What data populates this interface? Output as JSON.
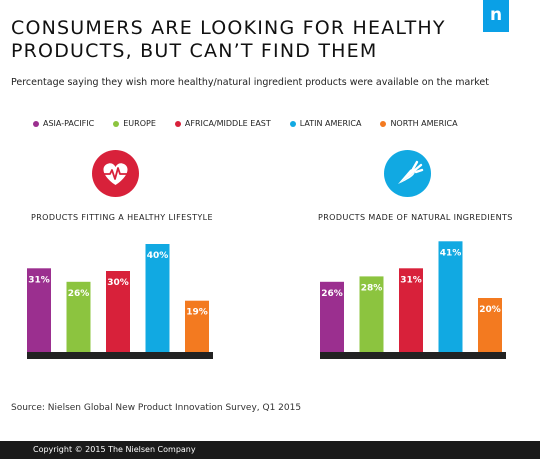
{
  "title_lines": [
    "CONSUMERS ARE LOOKING FOR HEALTHY",
    "PRODUCTS, BUT CAN’T FIND THEM"
  ],
  "subtitle": "Percentage saying they wish more healthy/natural ingredient products were available on the market",
  "logo_letter": "n",
  "source": "Source: Nielsen Global New Product Innovation Survey, Q1 2015",
  "copyright": "Copyright © 2015 The Nielsen Company",
  "icons": {
    "left": "heart-pulse-icon",
    "right": "carrot-icon",
    "left_color": "#d8213a",
    "right_color": "#11a9e2"
  },
  "chart_data": [
    {
      "type": "bar",
      "title": "PRODUCTS FITTING A HEALTHY LIFESTYLE",
      "categories": [
        "ASIA-PACIFIC",
        "EUROPE",
        "AFRICA/MIDDLE EAST",
        "LATIN AMERICA",
        "NORTH AMERICA"
      ],
      "values": [
        31,
        26,
        30,
        40,
        19
      ],
      "labels": [
        "31%",
        "26%",
        "30%",
        "40%",
        "19%"
      ],
      "colors": [
        "#9b2f8f",
        "#8cc43f",
        "#d8213a",
        "#11a9e2",
        "#f37a20"
      ],
      "xlabel": "",
      "ylabel": "",
      "ylim": [
        0,
        42
      ]
    },
    {
      "type": "bar",
      "title": "PRODUCTS MADE OF NATURAL INGREDIENTS",
      "categories": [
        "ASIA-PACIFIC",
        "EUROPE",
        "AFRICA/MIDDLE EAST",
        "LATIN AMERICA",
        "NORTH AMERICA"
      ],
      "values": [
        26,
        28,
        31,
        41,
        20
      ],
      "labels": [
        "26%",
        "28%",
        "31%",
        "41%",
        "20%"
      ],
      "colors": [
        "#9b2f8f",
        "#8cc43f",
        "#d8213a",
        "#11a9e2",
        "#f37a20"
      ],
      "xlabel": "",
      "ylabel": "",
      "ylim": [
        0,
        42
      ]
    }
  ],
  "legend": [
    {
      "label": "ASIA-PACIFIC",
      "color": "#9b2f8f"
    },
    {
      "label": "EUROPE",
      "color": "#8cc43f"
    },
    {
      "label": "AFRICA/MIDDLE EAST",
      "color": "#d8213a"
    },
    {
      "label": "LATIN AMERICA",
      "color": "#11a9e2"
    },
    {
      "label": "NORTH AMERICA",
      "color": "#f37a20"
    }
  ]
}
